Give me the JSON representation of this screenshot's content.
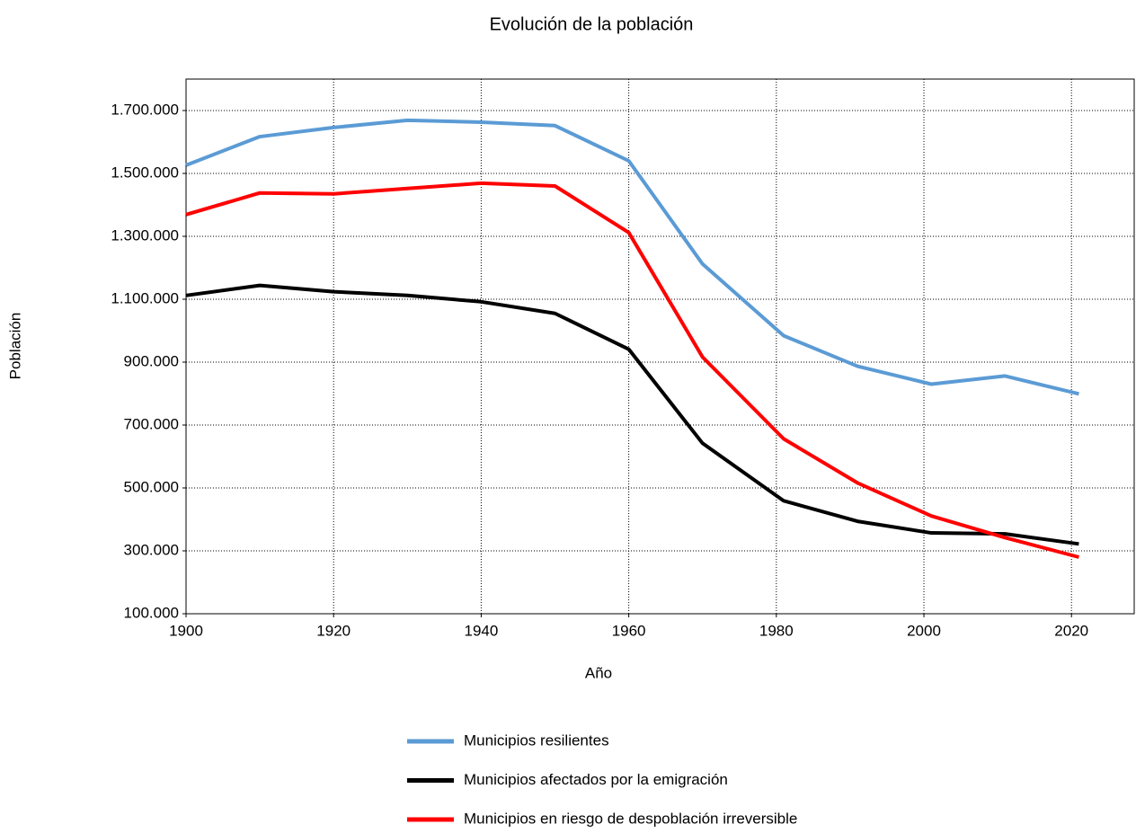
{
  "chart_data": {
    "type": "line",
    "title": "Evolución de la población",
    "x_label": "Año",
    "y_label": "Población",
    "x": [
      1900,
      1910,
      1920,
      1930,
      1940,
      1950,
      1960,
      1970,
      1981,
      1991,
      2001,
      2011,
      2021
    ],
    "series": [
      {
        "name": "Municipios resilientes",
        "color": "#5b9bd5",
        "values": [
          1526000,
          1617000,
          1646000,
          1669000,
          1663000,
          1652000,
          1540000,
          1212000,
          984000,
          887000,
          830000,
          856000,
          799000
        ]
      },
      {
        "name": "Municipios afectados por la emigración",
        "color": "#000000",
        "values": [
          1112000,
          1144000,
          1124000,
          1112000,
          1092000,
          1055000,
          941000,
          642000,
          459000,
          394000,
          357000,
          354000,
          322000
        ]
      },
      {
        "name": "Municipios en riesgo de despoblación irreversible",
        "color": "#ff0000",
        "values": [
          1369000,
          1438000,
          1435000,
          1452000,
          1469000,
          1460000,
          1312000,
          916000,
          656000,
          516000,
          411000,
          342000,
          280000
        ]
      }
    ],
    "xlim": [
      1900,
      2028.5
    ],
    "xticks": [
      1900,
      1920,
      1940,
      1960,
      1980,
      2000,
      2020
    ],
    "ylim": [
      100000,
      1800000
    ],
    "yticks": [
      {
        "value": 100000,
        "label": "100.000"
      },
      {
        "value": 300000,
        "label": "300.000"
      },
      {
        "value": 500000,
        "label": "500.000"
      },
      {
        "value": 700000,
        "label": "700.000"
      },
      {
        "value": 900000,
        "label": "900.000"
      },
      {
        "value": 1100000,
        "label": "1.100.000"
      },
      {
        "value": 1300000,
        "label": "1.300.000"
      },
      {
        "value": 1500000,
        "label": "1.500.000"
      },
      {
        "value": 1700000,
        "label": "1.700.000"
      }
    ],
    "grid": true,
    "legend": "bottom"
  }
}
